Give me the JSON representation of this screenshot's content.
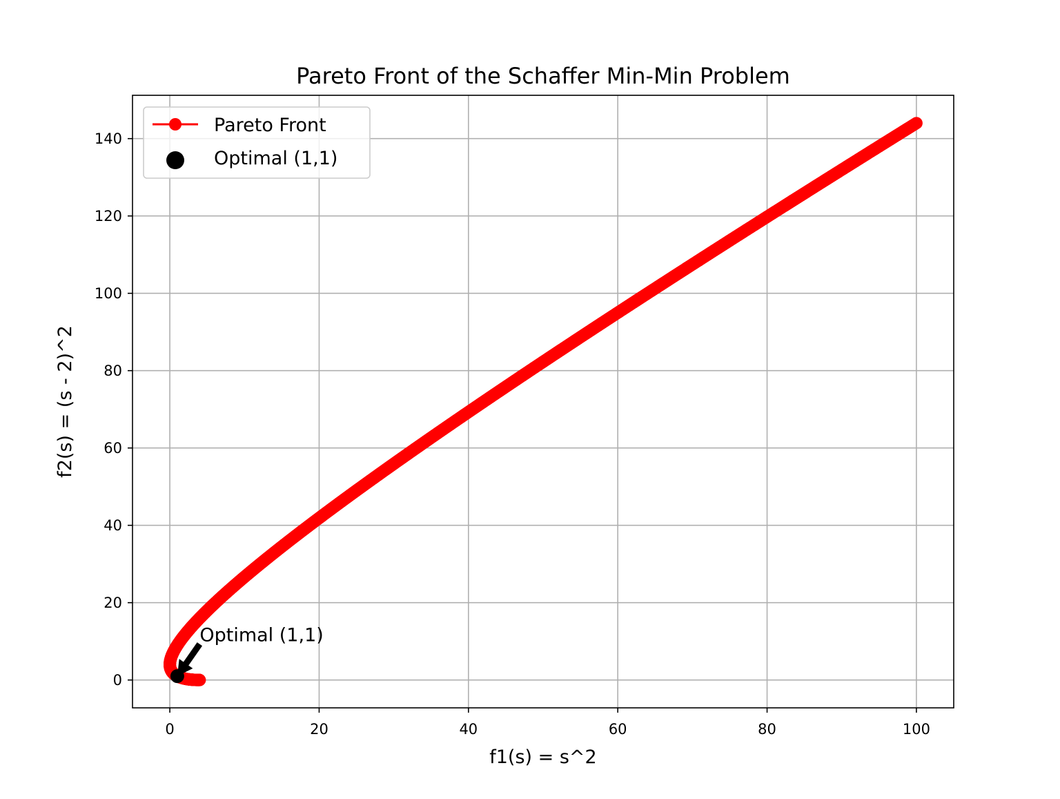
{
  "chart_data": {
    "type": "line",
    "title": "Pareto Front of the Schaffer Min-Min Problem",
    "xlabel": "f1(s) = s^2",
    "ylabel": "f2(s) = (s - 2)^2",
    "xlim": [
      -5,
      105
    ],
    "ylim": [
      -7.2,
      151.2
    ],
    "xticks": [
      0,
      20,
      40,
      60,
      80,
      100
    ],
    "yticks": [
      0,
      20,
      40,
      60,
      80,
      100,
      120,
      140
    ],
    "grid": true,
    "legend": {
      "position": "top-left",
      "entries": [
        {
          "label": "Pareto Front",
          "marker": "line-circle",
          "color": "#ff0000"
        },
        {
          "label": "Optimal (1,1)",
          "marker": "circle",
          "color": "#000000"
        }
      ]
    },
    "series": [
      {
        "name": "Pareto Front",
        "color": "#ff0000",
        "parametric": {
          "expr_x": "s^2",
          "expr_y": "(s - 2)^2",
          "s_range": [
            -10,
            2
          ],
          "points": 1000
        }
      },
      {
        "name": "Optimal (1,1)",
        "color": "#000000",
        "points": [
          {
            "x": 1,
            "y": 1
          }
        ]
      }
    ],
    "annotations": [
      {
        "text": "Optimal (1,1)",
        "xy": [
          1,
          1
        ],
        "xytext": [
          4,
          10
        ],
        "arrow": true,
        "arrow_color": "#000000"
      }
    ]
  }
}
